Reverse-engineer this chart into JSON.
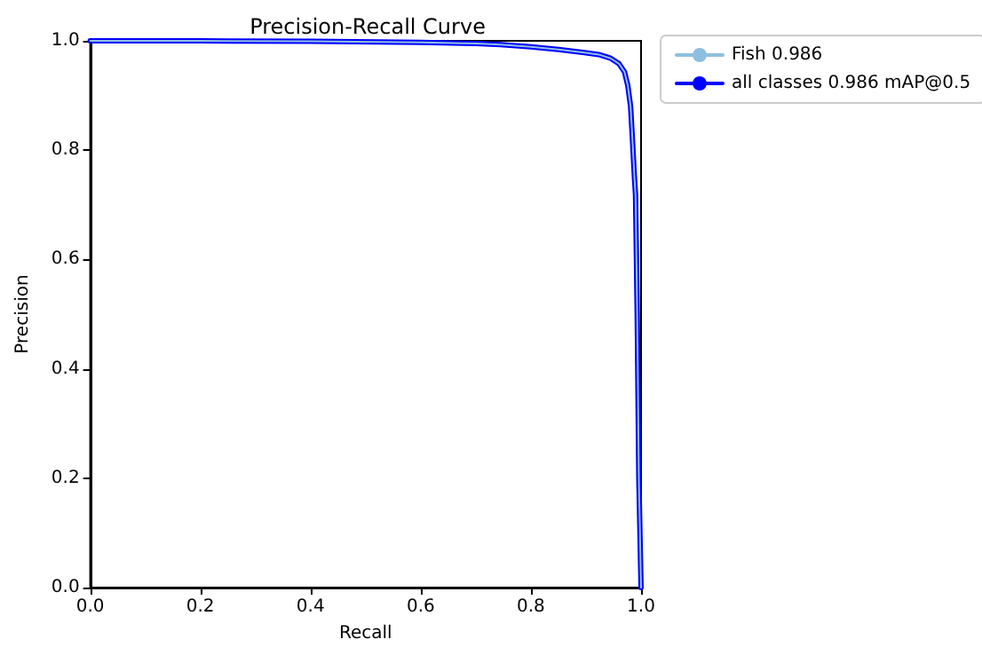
{
  "chart_data": {
    "type": "line",
    "title": "Precision-Recall Curve",
    "xlabel": "Recall",
    "ylabel": "Precision",
    "x": [
      0,
      0.2,
      0.4,
      0.6,
      0.7,
      0.745,
      0.8,
      0.85,
      0.9,
      0.923,
      0.945,
      0.96,
      0.97,
      0.976,
      0.981,
      0.984,
      0.988,
      0.99,
      0.993,
      0.996,
      1.0
    ],
    "series": [
      {
        "name": "Fish 0.986",
        "color": "#8ebfdf",
        "values": [
          1,
          1,
          0.999,
          0.997,
          0.995,
          0.993,
          0.989,
          0.984,
          0.978,
          0.975,
          0.968,
          0.958,
          0.943,
          0.918,
          0.88,
          0.826,
          0.75,
          0.718,
          0.5,
          0.2,
          0
        ]
      },
      {
        "name": "all classes 0.986 mAP@0.5",
        "color": "#0000ff",
        "values": [
          1,
          1,
          0.999,
          0.997,
          0.995,
          0.993,
          0.989,
          0.984,
          0.978,
          0.975,
          0.968,
          0.958,
          0.943,
          0.918,
          0.88,
          0.826,
          0.75,
          0.718,
          0.5,
          0.2,
          0
        ]
      }
    ],
    "xlim": [
      0,
      1
    ],
    "ylim": [
      0,
      1
    ],
    "xticks": [
      {
        "value": 0,
        "label": "0.0"
      },
      0.2,
      0.4,
      0.6,
      0.8,
      {
        "value": 1,
        "label": "1.0"
      }
    ],
    "yticks": [
      {
        "value": 0,
        "label": "0.0"
      },
      0.2,
      0.4,
      0.6,
      0.8,
      {
        "value": 1,
        "label": "1.0"
      }
    ],
    "legend": "top right",
    "grid": false,
    "marker": "none",
    "line_style": "solid"
  }
}
